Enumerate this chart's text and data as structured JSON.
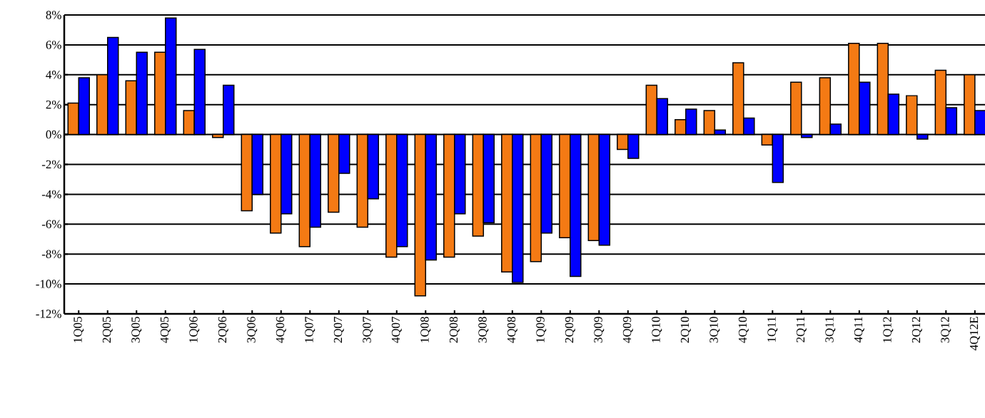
{
  "chart_data": {
    "type": "bar",
    "categories": [
      "1Q05",
      "2Q05",
      "3Q05",
      "4Q05",
      "1Q06",
      "2Q06",
      "3Q06",
      "4Q06",
      "1Q07",
      "2Q07",
      "3Q07",
      "4Q07",
      "1Q08",
      "2Q08",
      "3Q08",
      "4Q08",
      "1Q09",
      "2Q09",
      "3Q09",
      "4Q09",
      "1Q10",
      "2Q10",
      "3Q10",
      "4Q10",
      "1Q11",
      "2Q11",
      "3Q11",
      "4Q11",
      "1Q12",
      "2Q12",
      "3Q12",
      "4Q12E"
    ],
    "series": [
      {
        "color": "#f47a14",
        "values": [
          2.1,
          4.0,
          3.6,
          5.5,
          1.6,
          -0.2,
          -5.1,
          -6.6,
          -7.5,
          -5.2,
          -6.2,
          -8.2,
          -10.8,
          -8.2,
          -6.8,
          -9.2,
          -8.5,
          -6.9,
          -7.1,
          -1.0,
          3.3,
          1.0,
          1.6,
          4.8,
          -0.7,
          3.5,
          3.8,
          6.1,
          6.1,
          2.6,
          4.3,
          4.0
        ]
      },
      {
        "color": "#0000ff",
        "values": [
          3.8,
          6.5,
          5.5,
          7.8,
          5.7,
          3.3,
          -4.0,
          -5.3,
          -6.2,
          -2.6,
          -4.3,
          -7.5,
          -8.4,
          -5.3,
          -5.9,
          -9.9,
          -6.6,
          -9.5,
          -7.4,
          -1.6,
          2.4,
          1.7,
          0.3,
          1.1,
          -3.2,
          -0.2,
          0.7,
          3.5,
          2.7,
          -0.3,
          1.8,
          1.6
        ]
      }
    ],
    "ylim": [
      -12,
      8
    ],
    "yticks": [
      {
        "value": -12,
        "label": "-12%"
      },
      {
        "value": -10,
        "label": "-10%"
      },
      {
        "value": -8,
        "label": "-8%"
      },
      {
        "value": -6,
        "label": "-6%"
      },
      {
        "value": -4,
        "label": "-4%"
      },
      {
        "value": -2,
        "label": "-2%"
      },
      {
        "value": 0,
        "label": "0%"
      },
      {
        "value": 2,
        "label": "2%"
      },
      {
        "value": 4,
        "label": "4%"
      },
      {
        "value": 6,
        "label": "6%"
      },
      {
        "value": 8,
        "label": "8%"
      }
    ],
    "grid": "y"
  }
}
